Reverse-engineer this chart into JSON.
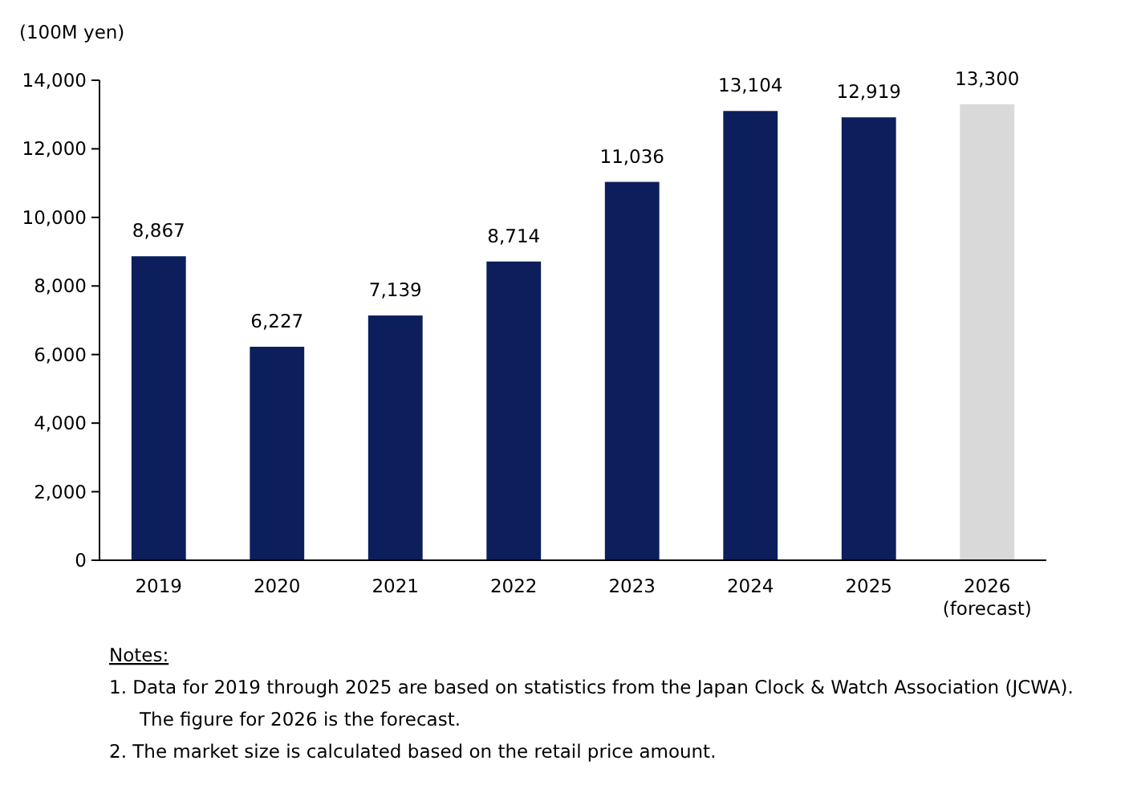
{
  "chart_data": {
    "type": "bar",
    "ylabel": "(100M yen)",
    "categories": [
      "2019",
      "2020",
      "2021",
      "2022",
      "2023",
      "2024",
      "2025",
      "2026\n(forecast)"
    ],
    "values": [
      8867,
      6227,
      7139,
      8714,
      11036,
      13104,
      12919,
      13300
    ],
    "colors": [
      "#0c1f5c",
      "#0c1f5c",
      "#0c1f5c",
      "#0c1f5c",
      "#0c1f5c",
      "#0c1f5c",
      "#0c1f5c",
      "#d9d9d9"
    ],
    "ylim": [
      0,
      14000
    ],
    "yticks": [
      0,
      {
        "value": 2000,
        "label": "2,000"
      },
      {
        "value": 4000,
        "label": "4,000"
      },
      {
        "value": 6000,
        "label": "6,000"
      },
      {
        "value": 8000,
        "label": "8,000"
      },
      {
        "value": 10000,
        "label": "10,000"
      },
      {
        "value": 12000,
        "label": "12,000"
      },
      {
        "value": 14000,
        "label": "14,000"
      }
    ],
    "value_labels": [
      "8,867",
      "6,227",
      "7,139",
      "8,714",
      "11,036",
      "13,104",
      "12,919",
      "13,300"
    ],
    "grid": false,
    "annotations": [
      "Notes:",
      "1. Data for 2019 through 2025 are based on statistics from the Japan Clock & Watch Association (JCWA).",
      "The figure for 2026 is the forecast.",
      "2. The market size is calculated based on the retail price amount."
    ]
  }
}
